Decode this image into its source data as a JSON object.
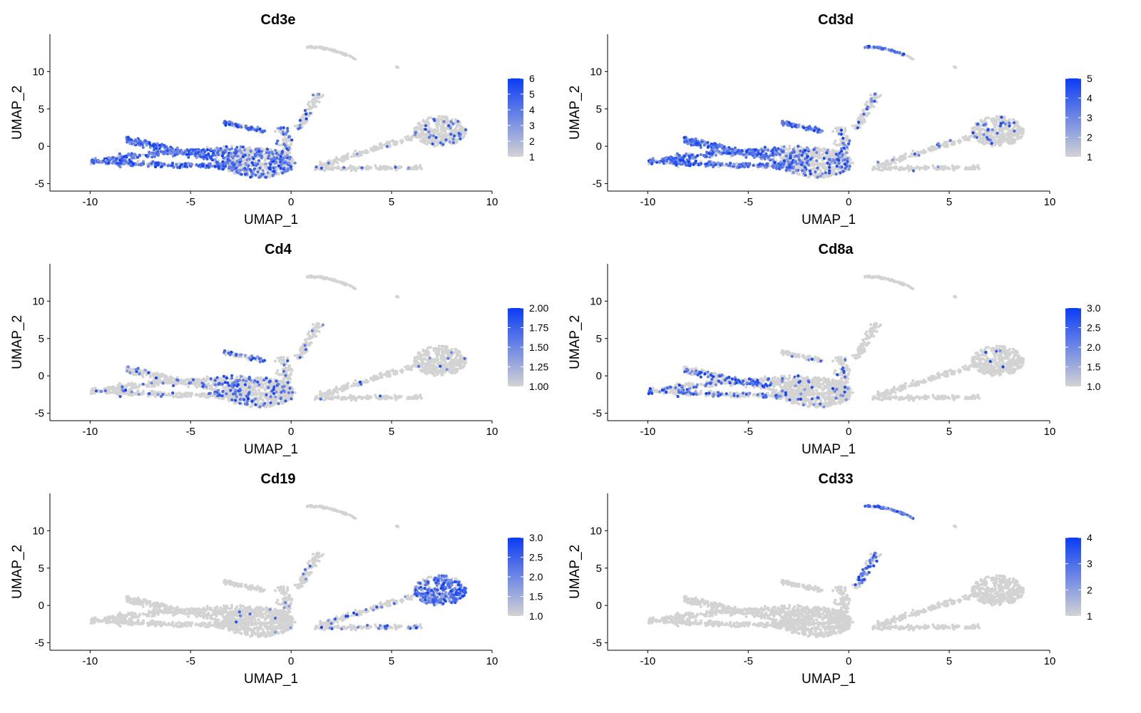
{
  "colors": {
    "low": "#d3d3d3",
    "high": "#0a3cf5",
    "axis": "#000000",
    "background": "#ffffff"
  },
  "chart_data": [
    {
      "type": "scatter",
      "title": "Cd3e",
      "xlabel": "UMAP_1",
      "ylabel": "UMAP_2",
      "xlim": [
        -12,
        10
      ],
      "ylim": [
        -6,
        15
      ],
      "xticks": [
        "-10",
        "-5",
        "0",
        "5",
        "10"
      ],
      "yticks": [
        "-5",
        "0",
        "5",
        "10"
      ],
      "legend": {
        "position": "right",
        "min": 1,
        "max": 6,
        "labels": [
          "6",
          "5",
          "4",
          "3",
          "2",
          "1"
        ]
      },
      "expression": {
        "tc_left": 0.75,
        "tc_mid": 0.4,
        "tc_upper": 0.6,
        "center": 0.3,
        "right_arm": 0.05,
        "right_blob": 0.1,
        "top_arc": 0.0,
        "top_small": 0.0,
        "spur": 0.15
      }
    },
    {
      "type": "scatter",
      "title": "Cd3d",
      "xlabel": "UMAP_1",
      "ylabel": "UMAP_2",
      "xlim": [
        -12,
        10
      ],
      "ylim": [
        -6,
        15
      ],
      "xticks": [
        "-10",
        "-5",
        "0",
        "5",
        "10"
      ],
      "yticks": [
        "-5",
        "0",
        "5",
        "10"
      ],
      "legend": {
        "position": "right",
        "min": 1,
        "max": 5,
        "labels": [
          "5",
          "4",
          "3",
          "2",
          "1"
        ]
      },
      "expression": {
        "tc_left": 0.75,
        "tc_mid": 0.4,
        "tc_upper": 0.6,
        "center": 0.15,
        "right_arm": 0.03,
        "right_blob": 0.08,
        "top_arc": 0.45,
        "top_small": 0.0,
        "spur": 0.1
      }
    },
    {
      "type": "scatter",
      "title": "Cd4",
      "xlabel": "UMAP_1",
      "ylabel": "UMAP_2",
      "xlim": [
        -12,
        10
      ],
      "ylim": [
        -6,
        15
      ],
      "xticks": [
        "-10",
        "-5",
        "0",
        "5",
        "10"
      ],
      "yticks": [
        "-5",
        "0",
        "5",
        "10"
      ],
      "legend": {
        "position": "right",
        "min": 1.0,
        "max": 2.0,
        "labels": [
          "2.00",
          "1.75",
          "1.50",
          "1.25",
          "1.00"
        ]
      },
      "expression": {
        "tc_left": 0.08,
        "tc_mid": 0.3,
        "tc_upper": 0.25,
        "center": 0.1,
        "right_arm": 0.01,
        "right_blob": 0.02,
        "top_arc": 0.0,
        "top_small": 0.0,
        "spur": 0.05
      }
    },
    {
      "type": "scatter",
      "title": "Cd8a",
      "xlabel": "UMAP_1",
      "ylabel": "UMAP_2",
      "xlim": [
        -12,
        10
      ],
      "ylim": [
        -6,
        15
      ],
      "xticks": [
        "-10",
        "-5",
        "0",
        "5",
        "10"
      ],
      "yticks": [
        "-5",
        "0",
        "5",
        "10"
      ],
      "legend": {
        "position": "right",
        "min": 1.0,
        "max": 3.0,
        "labels": [
          "3.0",
          "2.5",
          "2.0",
          "1.5",
          "1.0"
        ]
      },
      "expression": {
        "tc_left": 0.25,
        "tc_mid": 0.03,
        "tc_upper": 0.05,
        "center": 0.05,
        "right_arm": 0.0,
        "right_blob": 0.01,
        "top_arc": 0.0,
        "top_small": 0.0,
        "spur": 0.0
      }
    },
    {
      "type": "scatter",
      "title": "Cd19",
      "xlabel": "UMAP_1",
      "ylabel": "UMAP_2",
      "xlim": [
        -12,
        10
      ],
      "ylim": [
        -6,
        15
      ],
      "xticks": [
        "-10",
        "-5",
        "0",
        "5",
        "10"
      ],
      "yticks": [
        "-5",
        "0",
        "5",
        "10"
      ],
      "legend": {
        "position": "right",
        "min": 1.0,
        "max": 3.0,
        "labels": [
          "3.0",
          "2.5",
          "2.0",
          "1.5",
          "1.0"
        ]
      },
      "expression": {
        "tc_left": 0.0,
        "tc_mid": 0.0,
        "tc_upper": 0.0,
        "center": 0.01,
        "right_arm": 0.12,
        "right_blob": 0.55,
        "top_arc": 0.0,
        "top_small": 0.0,
        "spur": 0.03
      }
    },
    {
      "type": "scatter",
      "title": "Cd33",
      "xlabel": "UMAP_1",
      "ylabel": "UMAP_2",
      "xlim": [
        -12,
        10
      ],
      "ylim": [
        -6,
        15
      ],
      "xticks": [
        "-10",
        "-5",
        "0",
        "5",
        "10"
      ],
      "yticks": [
        "-5",
        "0",
        "5",
        "10"
      ],
      "legend": {
        "position": "right",
        "min": 1,
        "max": 4,
        "labels": [
          "4",
          "3",
          "2",
          "1"
        ]
      },
      "expression": {
        "tc_left": 0.0,
        "tc_mid": 0.0,
        "tc_upper": 0.0,
        "center": 0.0,
        "right_arm": 0.0,
        "right_blob": 0.0,
        "top_arc": 0.5,
        "top_small": 0.0,
        "spur": 0.4
      }
    }
  ]
}
